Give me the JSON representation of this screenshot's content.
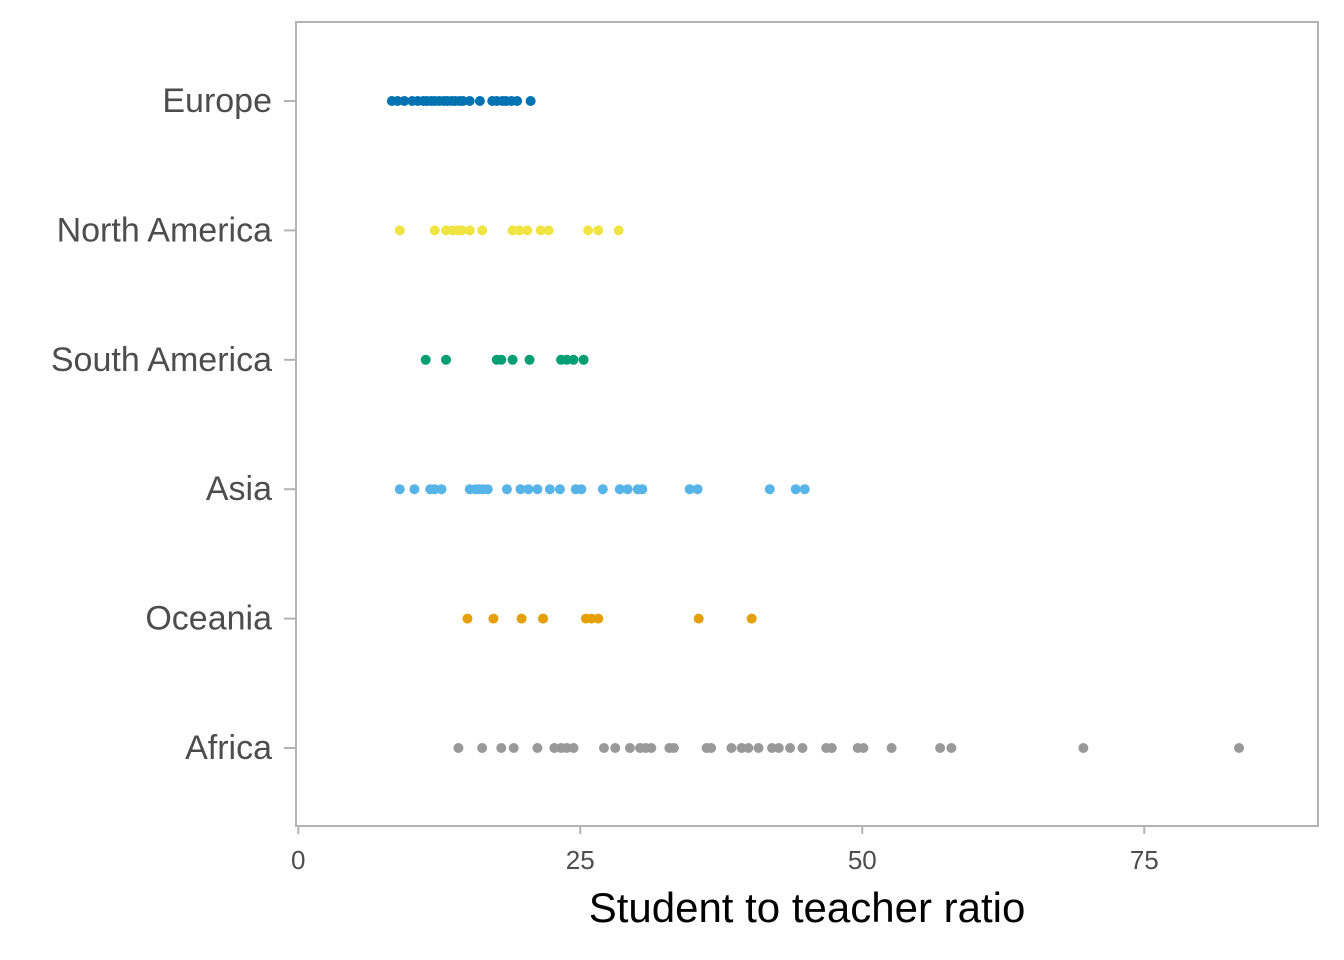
{
  "chart_data": {
    "type": "strip",
    "x_label": "Student to teacher ratio",
    "xlim": [
      -0.2,
      90.4
    ],
    "xticks": [
      0,
      25,
      50,
      75
    ],
    "series": [
      {
        "name": "Europe",
        "color": "#0072B2",
        "values": [
          8.3,
          8.8,
          9.4,
          10.1,
          10.6,
          11.1,
          11.4,
          11.8,
          12.1,
          12.5,
          12.9,
          13.2,
          13.6,
          13.9,
          14.3,
          14.6,
          15.2,
          16.1,
          17.2,
          17.6,
          18.1,
          18.4,
          18.9,
          19.4,
          20.6
        ]
      },
      {
        "name": "North America",
        "color": "#F0E442",
        "values": [
          9.0,
          12.1,
          13.1,
          13.7,
          14.2,
          14.5,
          15.2,
          16.3,
          19.0,
          19.6,
          20.3,
          21.5,
          22.2,
          25.7,
          26.6,
          28.4
        ]
      },
      {
        "name": "South America",
        "color": "#009E73",
        "values": [
          11.3,
          13.1,
          17.6,
          18.0,
          19.0,
          20.5,
          23.3,
          23.8,
          24.4,
          25.3
        ]
      },
      {
        "name": "Asia",
        "color": "#56B4E9",
        "values": [
          9.0,
          10.3,
          11.7,
          12.1,
          12.7,
          15.2,
          15.7,
          16.0,
          16.4,
          16.8,
          18.5,
          19.7,
          20.4,
          21.2,
          22.3,
          23.2,
          24.6,
          25.1,
          27.0,
          28.5,
          29.2,
          30.1,
          30.5,
          34.7,
          35.4,
          41.8,
          44.1,
          44.9
        ]
      },
      {
        "name": "Oceania",
        "color": "#E69F00",
        "values": [
          15.0,
          17.3,
          19.8,
          21.7,
          25.5,
          26.0,
          26.6,
          35.5,
          40.2
        ]
      },
      {
        "name": "Africa",
        "color": "#999999",
        "values": [
          14.2,
          16.3,
          18.0,
          19.1,
          21.2,
          22.7,
          23.3,
          23.8,
          24.4,
          27.1,
          28.1,
          29.4,
          30.3,
          30.8,
          31.3,
          32.9,
          33.3,
          36.2,
          36.6,
          38.4,
          39.3,
          39.9,
          40.8,
          42.0,
          42.6,
          43.6,
          44.7,
          46.8,
          47.3,
          49.6,
          50.1,
          52.6,
          56.9,
          57.9,
          69.6,
          83.4
        ]
      }
    ]
  }
}
